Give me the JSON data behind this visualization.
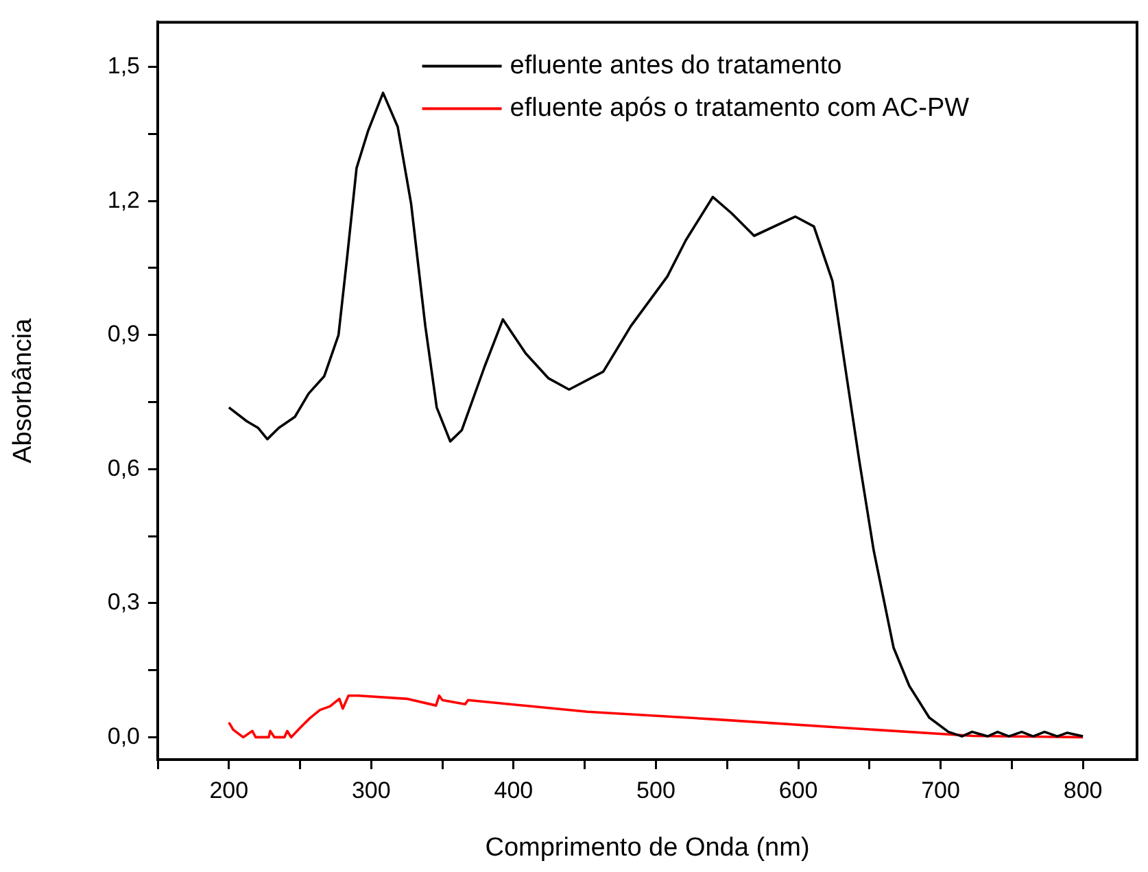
{
  "chart_data": {
    "type": "line",
    "xlabel": "Comprimento de Onda (nm)",
    "ylabel": "Absorbância",
    "xlim": [
      150,
      838
    ],
    "ylim": [
      -0.05,
      1.6
    ],
    "xticks": [
      {
        "value": 150,
        "label": null
      },
      200,
      {
        "value": 250,
        "label": null
      },
      300,
      {
        "value": 350,
        "label": null
      },
      400,
      {
        "value": 450,
        "label": null
      },
      500,
      {
        "value": 550,
        "label": null
      },
      600,
      {
        "value": 650,
        "label": null
      },
      700,
      {
        "value": 750,
        "label": null
      },
      800
    ],
    "yticks": [
      {
        "value": 0,
        "label": "0,0"
      },
      {
        "value": 0.15,
        "label": null
      },
      {
        "value": 0.3,
        "label": "0,3"
      },
      {
        "value": 0.45,
        "label": null
      },
      {
        "value": 0.6,
        "label": "0,6"
      },
      {
        "value": 0.75,
        "label": null
      },
      {
        "value": 0.9,
        "label": "0,9"
      },
      {
        "value": 1.05,
        "label": null
      },
      {
        "value": 1.2,
        "label": "1,2"
      },
      {
        "value": 1.35,
        "label": null
      },
      {
        "value": 1.5,
        "label": "1,5"
      }
    ],
    "grid": false,
    "legend": "top right",
    "marker": "none",
    "line_style": "solid",
    "series": [
      {
        "name": "efluente antes do tratamento",
        "color": "#000000",
        "x": [
          200,
          212.6,
          220.6,
          227,
          235,
          246.4,
          256,
          267,
          277,
          283,
          289.7,
          297.7,
          308.3,
          318.6,
          328,
          338,
          346,
          355.5,
          363.6,
          379.6,
          392.5,
          408.5,
          424.6,
          439,
          463,
          482.4,
          508,
          521,
          540,
          553,
          569,
          598,
          611,
          624,
          633.4,
          643,
          653,
          667,
          678,
          692,
          705.5,
          715,
          722,
          733,
          740,
          748,
          757,
          765,
          773,
          782,
          789,
          800
        ],
        "values": [
          0.738,
          0.707,
          0.692,
          0.667,
          0.692,
          0.717,
          0.769,
          0.808,
          0.9,
          1.072,
          1.274,
          1.356,
          1.442,
          1.366,
          1.194,
          0.92,
          0.738,
          0.662,
          0.687,
          0.829,
          0.935,
          0.859,
          0.803,
          0.778,
          0.818,
          0.92,
          1.031,
          1.112,
          1.209,
          1.173,
          1.122,
          1.165,
          1.143,
          1.021,
          0.819,
          0.616,
          0.418,
          0.2,
          0.115,
          0.044,
          0.012,
          0.002,
          0.012,
          0.002,
          0.012,
          0.002,
          0.012,
          0.002,
          0.012,
          0.002,
          0.01,
          0.002
        ]
      },
      {
        "name": "efluente após o tratamento com AC-PW",
        "color": "#ff0000",
        "x": [
          200,
          203,
          210,
          216.5,
          218.8,
          228,
          229,
          232,
          239,
          241,
          243.7,
          250,
          257,
          264,
          271,
          277.6,
          280,
          284,
          291,
          325,
          345.5,
          347.7,
          350,
          366,
          368,
          452,
          542,
          633,
          723,
          800
        ],
        "values": [
          0.033,
          0.017,
          0,
          0.014,
          0,
          0,
          0.014,
          0,
          0,
          0.014,
          0,
          0.021,
          0.043,
          0.061,
          0.069,
          0.086,
          0.064,
          0.093,
          0.093,
          0.086,
          0.071,
          0.093,
          0.083,
          0.074,
          0.083,
          0.057,
          0.04,
          0.021,
          0.003,
          0
        ]
      }
    ]
  }
}
